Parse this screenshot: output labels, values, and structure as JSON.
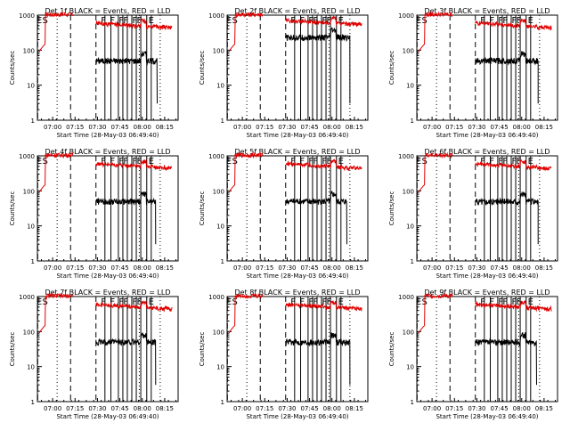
{
  "colors": {
    "events": "#000000",
    "lld": "#e00000",
    "background": "#ffffff",
    "axes": "#000000"
  },
  "shared": {
    "xlabel": "Start Time (28-May-03 06:49:40)",
    "ylabel": "Counts/sec",
    "yscale": "log",
    "ylim": [
      1,
      1000
    ],
    "ytick_labels": [
      "1",
      "10",
      "100",
      "1000"
    ],
    "xtick_labels": [
      "07:00",
      "07:15",
      "07:30",
      "07:45",
      "08:00",
      "08:15"
    ],
    "xlim_hours": [
      6.83,
      8.4
    ],
    "dashed_times": [
      "06:50",
      "07:12",
      "07:29"
    ],
    "dotted_times": [
      "07:03",
      "07:58",
      "08:12"
    ],
    "marker_letters": [
      "E",
      "S",
      "F",
      "F",
      "F",
      "F",
      "F",
      "F",
      "E"
    ]
  },
  "chart_data": [
    {
      "type": "line",
      "title": "Det 1f BLACK = Events, RED = LLD",
      "scale": 1.0,
      "events_end": "08:10",
      "series": [
        {
          "name": "BLACK = Events",
          "color": "#000000"
        },
        {
          "name": "RED = LLD",
          "color": "#e00000"
        }
      ]
    },
    {
      "type": "line",
      "title": "Det 2f BLACK = Events, RED = LLD",
      "scale": 1.0,
      "events_end": "08:12",
      "series": [
        {
          "name": "BLACK = Events",
          "color": "#000000"
        },
        {
          "name": "RED = LLD",
          "color": "#e00000"
        }
      ]
    },
    {
      "type": "line",
      "title": "Det 3f BLACK = Events, RED = LLD",
      "scale": 1.0,
      "events_end": "08:11",
      "series": [
        {
          "name": "BLACK = Events",
          "color": "#000000"
        },
        {
          "name": "RED = LLD",
          "color": "#e00000"
        }
      ]
    },
    {
      "type": "line",
      "title": "Det 4f BLACK = Events, RED = LLD",
      "scale": 1.0,
      "events_end": "08:09",
      "series": [
        {
          "name": "BLACK = Events",
          "color": "#000000"
        },
        {
          "name": "RED = LLD",
          "color": "#e00000"
        }
      ]
    },
    {
      "type": "line",
      "title": "Det 5f BLACK = Events, RED = LLD",
      "scale": 1.0,
      "events_end": "08:10",
      "series": [
        {
          "name": "BLACK = Events",
          "color": "#000000"
        },
        {
          "name": "RED = LLD",
          "color": "#e00000"
        }
      ]
    },
    {
      "type": "line",
      "title": "Det 6f BLACK = Events, RED = LLD",
      "scale": 1.0,
      "events_end": "08:11",
      "series": [
        {
          "name": "BLACK = Events",
          "color": "#000000"
        },
        {
          "name": "RED = LLD",
          "color": "#e00000"
        }
      ]
    },
    {
      "type": "line",
      "title": "Det 7f BLACK = Events, RED = LLD",
      "scale": 1.0,
      "events_end": "08:09",
      "series": [
        {
          "name": "BLACK = Events",
          "color": "#000000"
        },
        {
          "name": "RED = LLD",
          "color": "#e00000"
        }
      ]
    },
    {
      "type": "line",
      "title": "Det 8f BLACK = Events, RED = LLD",
      "scale": 1.0,
      "events_end": "08:12",
      "series": [
        {
          "name": "BLACK = Events",
          "color": "#000000"
        },
        {
          "name": "RED = LLD",
          "color": "#e00000"
        }
      ]
    },
    {
      "type": "line",
      "title": "Det 9f BLACK = Events, RED = LLD",
      "scale": 1.0,
      "events_end": "08:10",
      "series": [
        {
          "name": "BLACK = Events",
          "color": "#000000"
        },
        {
          "name": "RED = LLD",
          "color": "#e00000"
        }
      ]
    }
  ]
}
